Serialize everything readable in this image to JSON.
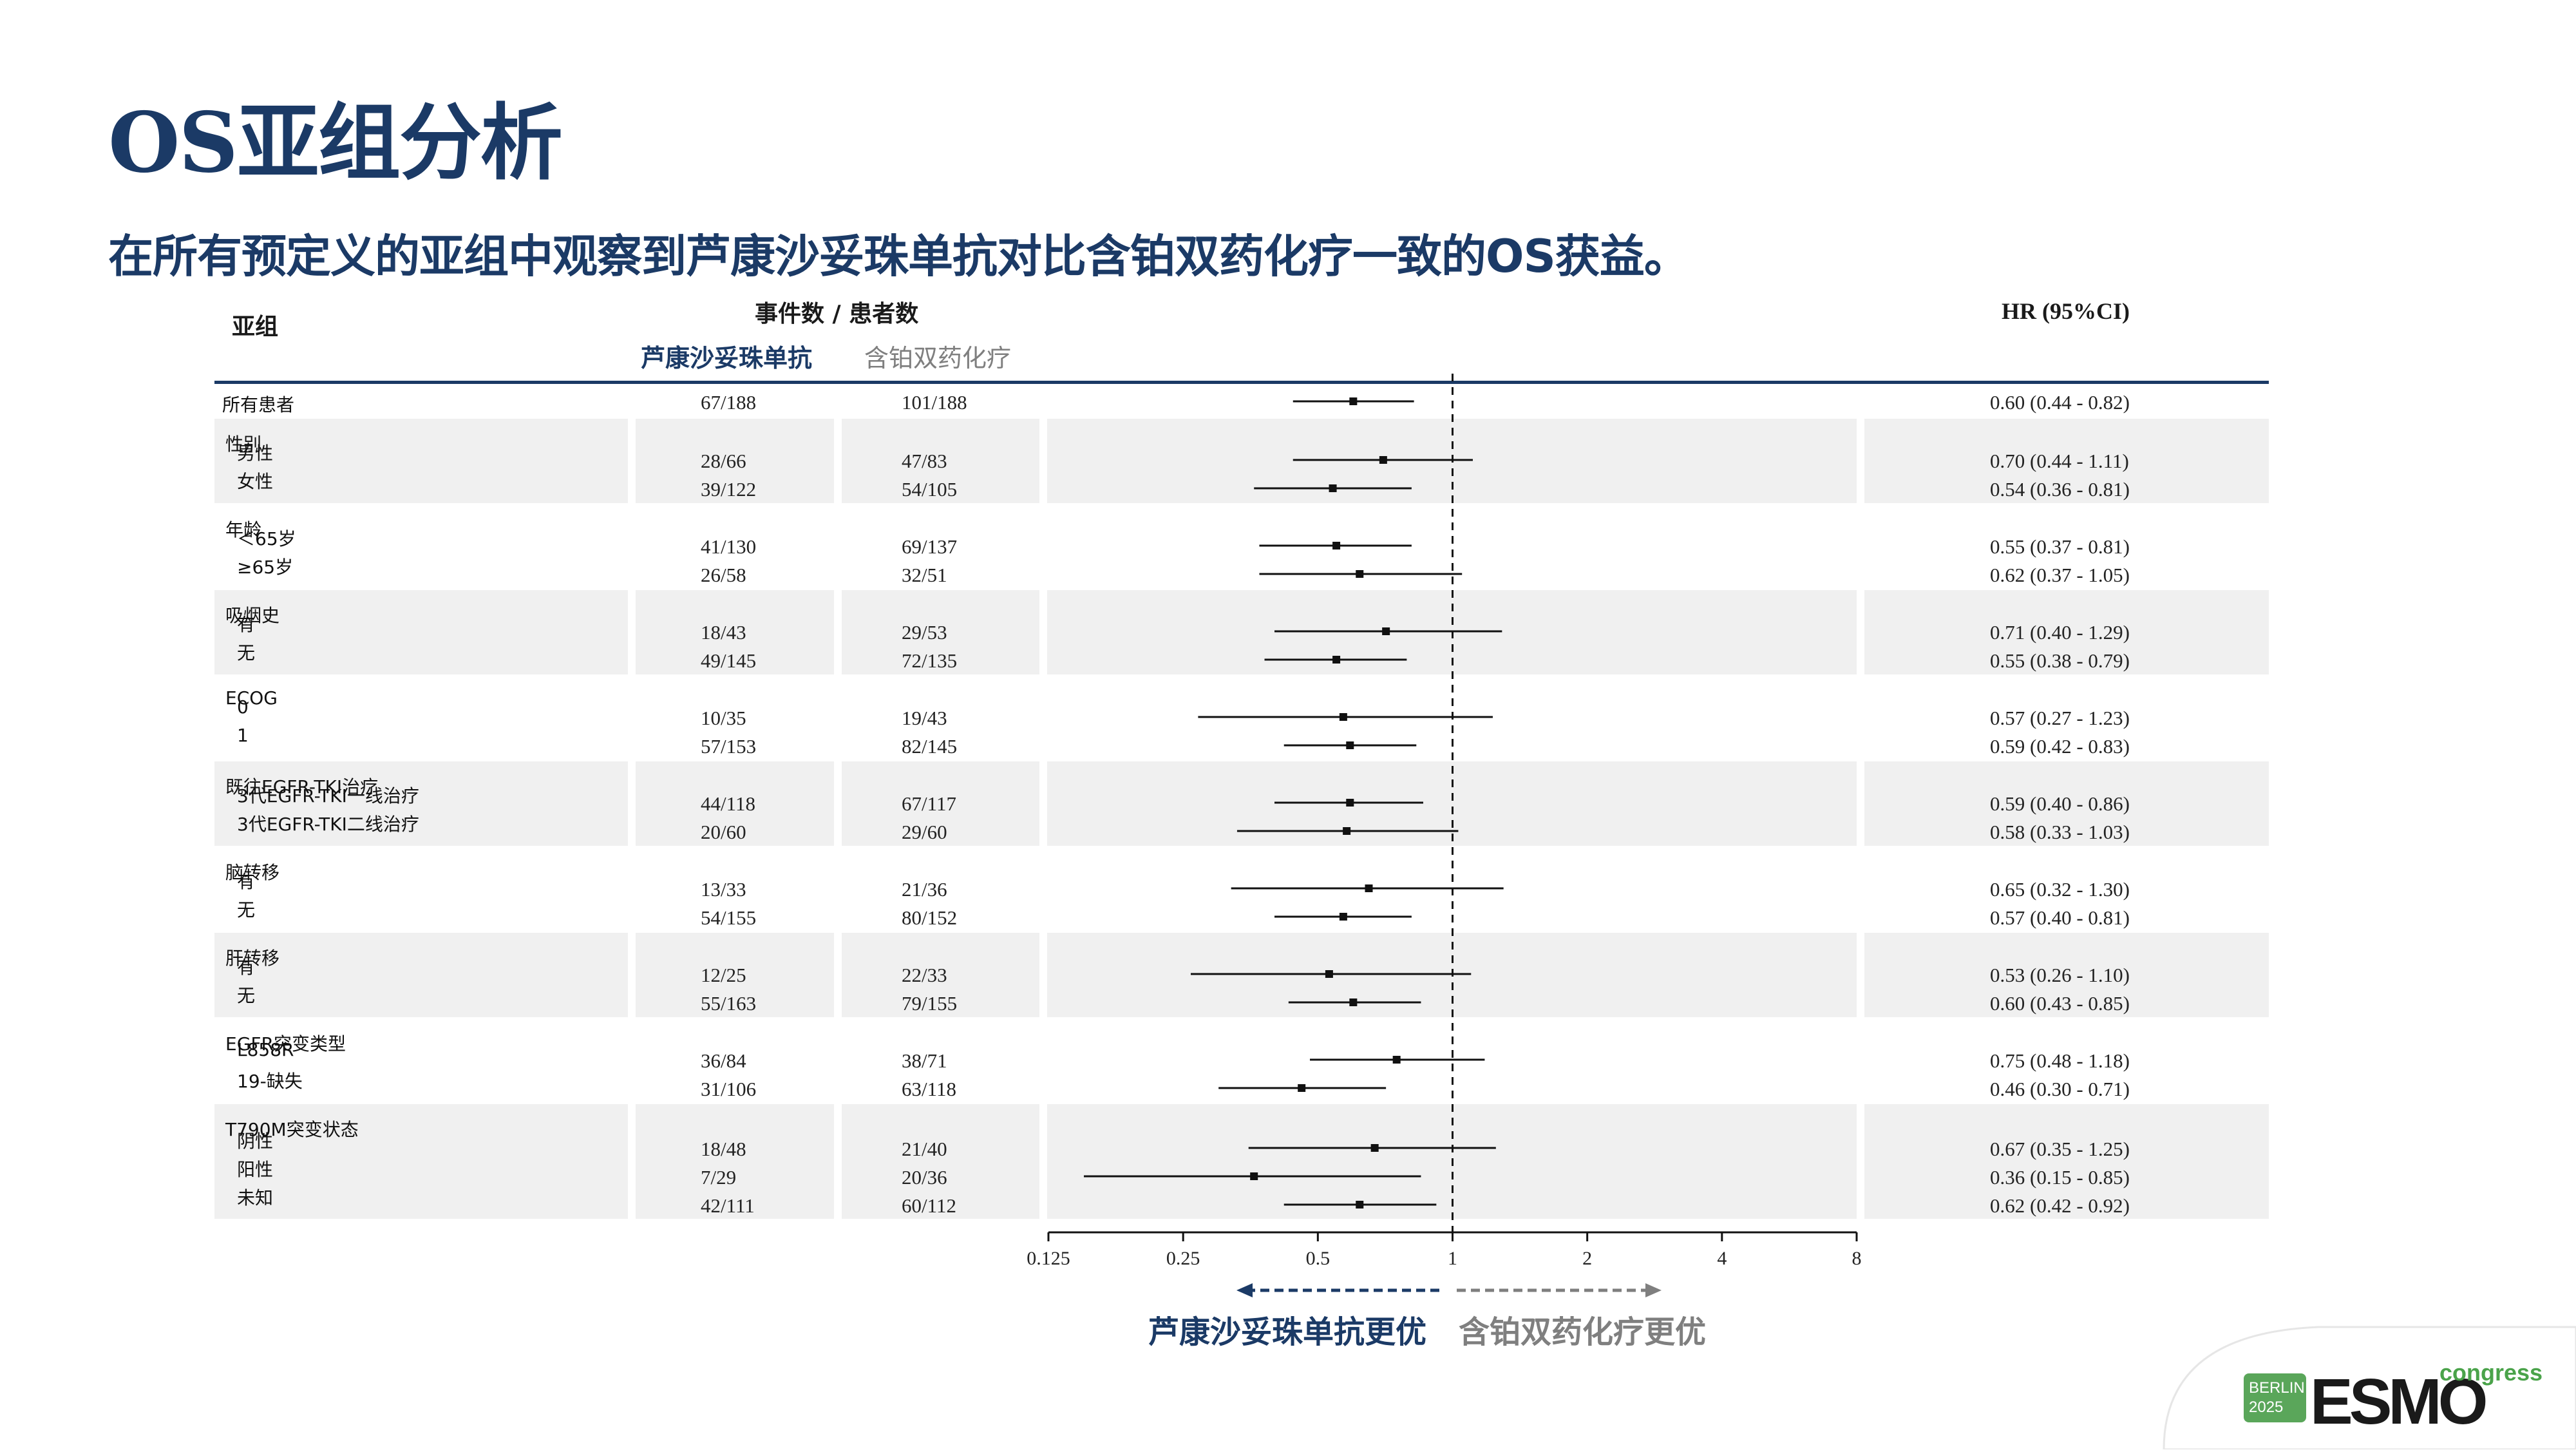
{
  "title": "OS亚组分析",
  "subtitle": "在所有预定义的亚组中观察到芦康沙妥珠单抗对比含铂双药化疗一致的OS获益。",
  "headers": {
    "subgroup": "亚组",
    "events": "事件数 / 患者数",
    "arm1": "芦康沙妥珠单抗",
    "arm2": "含铂双药化疗",
    "hr": "HR (95%CI)"
  },
  "colors": {
    "navy": "#1b3a66",
    "grey_label": "#7f7f7f",
    "band": "#f0f0f0"
  },
  "arrows": {
    "left": "芦康沙妥珠单抗更优",
    "right": "含铂双药化疗更优"
  },
  "logo": {
    "city": "BERLIN",
    "year": "2025",
    "brand": "ESMO",
    "word": "congress"
  },
  "groups": [
    {
      "label": "",
      "rows": [
        {
          "label": "所有患者",
          "a": "67/188",
          "b": "101/188",
          "hr": 0.6,
          "lo": 0.44,
          "hi": 0.82,
          "hr_text": "0.60 (0.44 - 0.82)"
        }
      ]
    },
    {
      "label": "性别",
      "rows": [
        {
          "label": "男性",
          "a": "28/66",
          "b": "47/83",
          "hr": 0.7,
          "lo": 0.44,
          "hi": 1.11,
          "hr_text": "0.70 (0.44 - 1.11)"
        },
        {
          "label": "女性",
          "a": "39/122",
          "b": "54/105",
          "hr": 0.54,
          "lo": 0.36,
          "hi": 0.81,
          "hr_text": "0.54 (0.36 - 0.81)"
        }
      ]
    },
    {
      "label": "年龄",
      "rows": [
        {
          "label": "＜65岁",
          "a": "41/130",
          "b": "69/137",
          "hr": 0.55,
          "lo": 0.37,
          "hi": 0.81,
          "hr_text": "0.55 (0.37 - 0.81)"
        },
        {
          "label": "≥65岁",
          "a": "26/58",
          "b": "32/51",
          "hr": 0.62,
          "lo": 0.37,
          "hi": 1.05,
          "hr_text": "0.62 (0.37 - 1.05)"
        }
      ]
    },
    {
      "label": "吸烟史",
      "rows": [
        {
          "label": "有",
          "a": "18/43",
          "b": "29/53",
          "hr": 0.71,
          "lo": 0.4,
          "hi": 1.29,
          "hr_text": "0.71 (0.40 - 1.29)"
        },
        {
          "label": "无",
          "a": "49/145",
          "b": "72/135",
          "hr": 0.55,
          "lo": 0.38,
          "hi": 0.79,
          "hr_text": "0.55 (0.38 - 0.79)"
        }
      ]
    },
    {
      "label": "ECOG",
      "rows": [
        {
          "label": "0",
          "a": "10/35",
          "b": "19/43",
          "hr": 0.57,
          "lo": 0.27,
          "hi": 1.23,
          "hr_text": "0.57 (0.27 - 1.23)"
        },
        {
          "label": "1",
          "a": "57/153",
          "b": "82/145",
          "hr": 0.59,
          "lo": 0.42,
          "hi": 0.83,
          "hr_text": "0.59 (0.42 - 0.83)"
        }
      ]
    },
    {
      "label": "既往EGFR-TKI治疗",
      "rows": [
        {
          "label": "3代EGFR-TKI一线治疗",
          "a": "44/118",
          "b": "67/117",
          "hr": 0.59,
          "lo": 0.4,
          "hi": 0.86,
          "hr_text": "0.59 (0.40 - 0.86)"
        },
        {
          "label": "3代EGFR-TKI二线治疗",
          "a": "20/60",
          "b": "29/60",
          "hr": 0.58,
          "lo": 0.33,
          "hi": 1.03,
          "hr_text": "0.58 (0.33 - 1.03)"
        }
      ]
    },
    {
      "label": "脑转移",
      "rows": [
        {
          "label": "有",
          "a": "13/33",
          "b": "21/36",
          "hr": 0.65,
          "lo": 0.32,
          "hi": 1.3,
          "hr_text": "0.65 (0.32 - 1.30)"
        },
        {
          "label": "无",
          "a": "54/155",
          "b": "80/152",
          "hr": 0.57,
          "lo": 0.4,
          "hi": 0.81,
          "hr_text": "0.57 (0.40 - 0.81)"
        }
      ]
    },
    {
      "label": "肝转移",
      "rows": [
        {
          "label": "有",
          "a": "12/25",
          "b": "22/33",
          "hr": 0.53,
          "lo": 0.26,
          "hi": 1.1,
          "hr_text": "0.53 (0.26 - 1.10)"
        },
        {
          "label": "无",
          "a": "55/163",
          "b": "79/155",
          "hr": 0.6,
          "lo": 0.43,
          "hi": 0.85,
          "hr_text": "0.60 (0.43 - 0.85)"
        }
      ]
    },
    {
      "label": "EGFR突变类型",
      "rows": [
        {
          "label": "L858R",
          "a": "36/84",
          "b": "38/71",
          "hr": 0.75,
          "lo": 0.48,
          "hi": 1.18,
          "hr_text": "0.75 (0.48 - 1.18)"
        },
        {
          "label": "19-缺失",
          "a": "31/106",
          "b": "63/118",
          "hr": 0.46,
          "lo": 0.3,
          "hi": 0.71,
          "hr_text": "0.46 (0.30 - 0.71)"
        }
      ]
    },
    {
      "label": "T790M突变状态",
      "rows": [
        {
          "label": "阴性",
          "a": "18/48",
          "b": "21/40",
          "hr": 0.67,
          "lo": 0.35,
          "hi": 1.25,
          "hr_text": "0.67 (0.35 - 1.25)"
        },
        {
          "label": "阳性",
          "a": "7/29",
          "b": "20/36",
          "hr": 0.36,
          "lo": 0.15,
          "hi": 0.85,
          "hr_text": "0.36 (0.15 - 0.85)"
        },
        {
          "label": "未知",
          "a": "42/111",
          "b": "60/112",
          "hr": 0.62,
          "lo": 0.42,
          "hi": 0.92,
          "hr_text": "0.62 (0.42 - 0.92)"
        }
      ]
    }
  ],
  "chart_data": {
    "type": "forest",
    "title": "OS亚组分析",
    "xlabel": "HR (95%CI)",
    "x_scale": "log2",
    "xlim": [
      0.125,
      8
    ],
    "x_ticks": [
      0.125,
      0.25,
      0.5,
      1,
      2,
      4,
      8
    ],
    "x_tick_labels": [
      "0.125",
      "0.25",
      "0.5",
      "1",
      "2",
      "4",
      "8"
    ],
    "reference_line": 1,
    "series": [
      {
        "name": "所有患者",
        "hr": 0.6,
        "lo": 0.44,
        "hi": 0.82
      },
      {
        "name": "男性",
        "hr": 0.7,
        "lo": 0.44,
        "hi": 1.11
      },
      {
        "name": "女性",
        "hr": 0.54,
        "lo": 0.36,
        "hi": 0.81
      },
      {
        "name": "＜65岁",
        "hr": 0.55,
        "lo": 0.37,
        "hi": 0.81
      },
      {
        "name": "≥65岁",
        "hr": 0.62,
        "lo": 0.37,
        "hi": 1.05
      },
      {
        "name": "吸烟史-有",
        "hr": 0.71,
        "lo": 0.4,
        "hi": 1.29
      },
      {
        "name": "吸烟史-无",
        "hr": 0.55,
        "lo": 0.38,
        "hi": 0.79
      },
      {
        "name": "ECOG 0",
        "hr": 0.57,
        "lo": 0.27,
        "hi": 1.23
      },
      {
        "name": "ECOG 1",
        "hr": 0.59,
        "lo": 0.42,
        "hi": 0.83
      },
      {
        "name": "3代EGFR-TKI一线治疗",
        "hr": 0.59,
        "lo": 0.4,
        "hi": 0.86
      },
      {
        "name": "3代EGFR-TKI二线治疗",
        "hr": 0.58,
        "lo": 0.33,
        "hi": 1.03
      },
      {
        "name": "脑转移-有",
        "hr": 0.65,
        "lo": 0.32,
        "hi": 1.3
      },
      {
        "name": "脑转移-无",
        "hr": 0.57,
        "lo": 0.4,
        "hi": 0.81
      },
      {
        "name": "肝转移-有",
        "hr": 0.53,
        "lo": 0.26,
        "hi": 1.1
      },
      {
        "name": "肝转移-无",
        "hr": 0.6,
        "lo": 0.43,
        "hi": 0.85
      },
      {
        "name": "L858R",
        "hr": 0.75,
        "lo": 0.48,
        "hi": 1.18
      },
      {
        "name": "19-缺失",
        "hr": 0.46,
        "lo": 0.3,
        "hi": 0.71
      },
      {
        "name": "T790M阴性",
        "hr": 0.67,
        "lo": 0.35,
        "hi": 1.25
      },
      {
        "name": "T790M阳性",
        "hr": 0.36,
        "lo": 0.15,
        "hi": 0.85
      },
      {
        "name": "T790M未知",
        "hr": 0.62,
        "lo": 0.42,
        "hi": 0.92
      }
    ]
  }
}
